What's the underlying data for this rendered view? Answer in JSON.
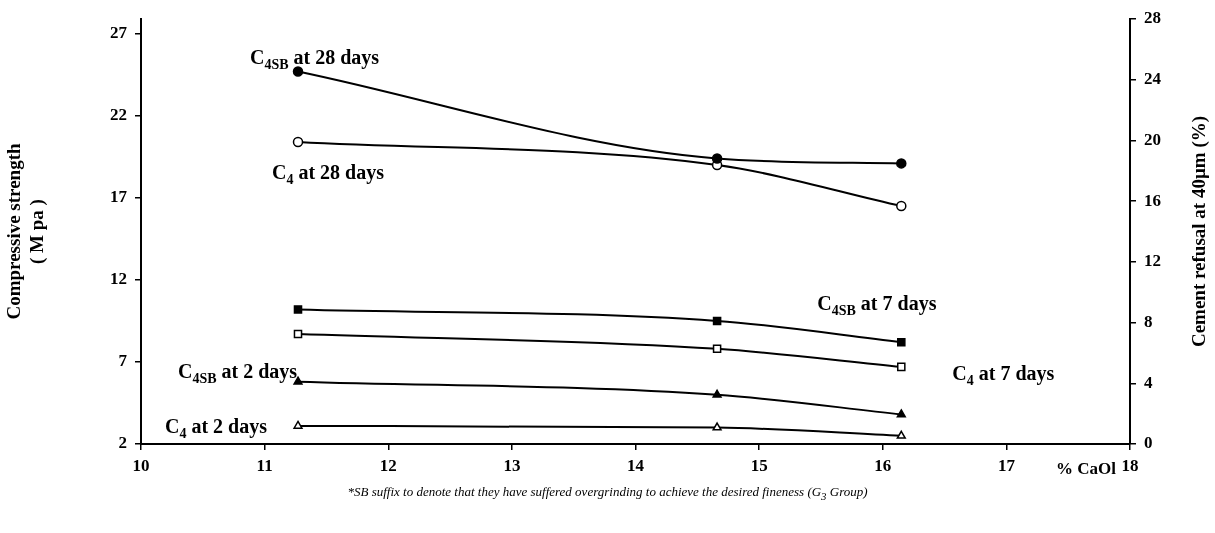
{
  "chart_data": {
    "type": "line",
    "xlabel": "% CaOl",
    "ylabel": "Compressive strength\n( M pa )",
    "y2label": "Cement refusal at 40µm (%)",
    "x": [
      11.27,
      14.66,
      16.15
    ],
    "xlim": [
      10,
      18
    ],
    "xticks": [
      10,
      11,
      12,
      13,
      14,
      15,
      16,
      17,
      18
    ],
    "ylim": [
      2,
      27.9
    ],
    "yticks": [
      2,
      7,
      12,
      17,
      22,
      27
    ],
    "y2lim": [
      0,
      28
    ],
    "y2ticks": [
      0,
      4,
      8,
      12,
      16,
      20,
      24,
      28
    ],
    "grid": false,
    "legend": false,
    "line_style": "solid",
    "series": [
      {
        "name": "C$_{4SB}$ at 28 days",
        "color": "#000000",
        "marker": "circle",
        "values": [
          24.7,
          19.4,
          19.1
        ]
      },
      {
        "name": "C$_{4}$ at 28 days",
        "color": "#000000",
        "marker": "circle",
        "values": [
          20.4,
          19.0,
          16.5
        ]
      },
      {
        "name": "C$_{4SB}$ at 7 days",
        "color": "#000000",
        "marker": "square",
        "values": [
          10.2,
          9.5,
          8.2
        ]
      },
      {
        "name": "C$_{4}$ at 7 days",
        "color": "#000000",
        "marker": "square",
        "values": [
          8.7,
          7.8,
          6.7
        ]
      },
      {
        "name": "C$_{4SB}$ at 2 days",
        "color": "#000000",
        "marker": "triangle",
        "values": [
          5.8,
          5.0,
          3.8
        ]
      },
      {
        "name": "C$_{4}$ at 2 days",
        "color": "#000000",
        "marker": "triangle",
        "values": [
          3.1,
          3.0,
          2.5
        ]
      }
    ],
    "annotations": [
      "*SB suffix to denote that they have suffered overgrinding to achieve the desired fineness (G$_{3}$ Group)"
    ]
  }
}
